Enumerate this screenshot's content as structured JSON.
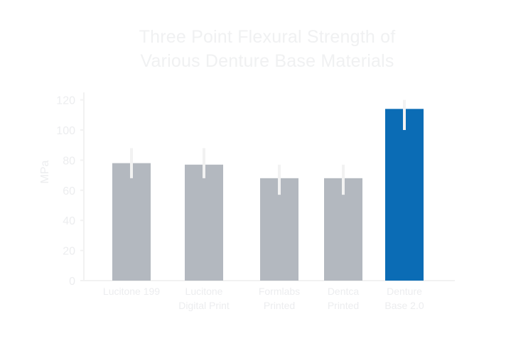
{
  "chart_data": {
    "type": "bar",
    "title_lines": [
      "Three Point Flexural Strength of",
      "Various Denture Base Materials"
    ],
    "ylabel": "MPa",
    "xlabel": "",
    "ylim": [
      0,
      125
    ],
    "yticks": [
      0,
      20,
      40,
      60,
      80,
      100,
      120
    ],
    "categories": [
      [
        "Lucitone 199"
      ],
      [
        "Lucitone",
        "Digital Print"
      ],
      [
        "Formlabs",
        "Printed"
      ],
      [
        "Dentca",
        "Printed"
      ],
      [
        "Denture",
        "Base 2.0"
      ]
    ],
    "values": [
      78,
      77,
      68,
      68,
      114
    ],
    "error": [
      [
        68,
        88
      ],
      [
        68,
        88
      ],
      [
        57,
        77
      ],
      [
        57,
        77
      ],
      [
        100,
        120
      ]
    ],
    "bar_colors": [
      "#b3b8bf",
      "#b3b8bf",
      "#b3b8bf",
      "#b3b8bf",
      "#0b6cb5"
    ],
    "text_color": "#ecedef",
    "axis_color": "#f2f2f2",
    "error_bar_color": "#f2f2f2"
  }
}
